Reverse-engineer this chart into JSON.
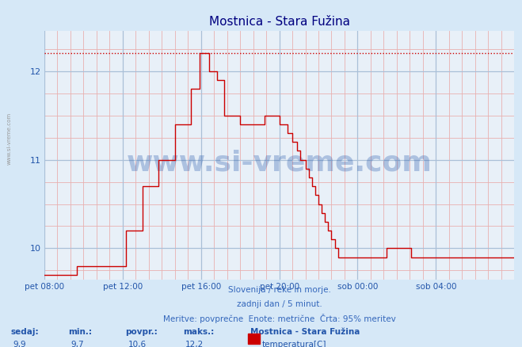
{
  "title": "Mostnica - Stara Fužina",
  "bg_color": "#d6e8f7",
  "plot_bg_color": "#e8f0f8",
  "line_color": "#cc0000",
  "grid_minor_color": "#e8b0b0",
  "grid_major_color": "#aac0d8",
  "ymin": 9.65,
  "ymax": 12.45,
  "ylabel_ticks": [
    10,
    11,
    12
  ],
  "max_line_y": 12.2,
  "subtitle1": "Slovenija / reke in morje.",
  "subtitle2": "zadnji dan / 5 minut.",
  "subtitle3": "Meritve: povprečne  Enote: metrične  Črta: 95% meritev",
  "footer_labels": [
    "sedaj:",
    "min.:",
    "povpr.:",
    "maks.:"
  ],
  "footer_values": [
    "9,9",
    "9,7",
    "10,6",
    "12,2"
  ],
  "legend_name": "Mostnica - Stara Fužina",
  "legend_item": "temperatura[C]",
  "watermark": "www.si-vreme.com",
  "side_label": "www.si-vreme.com",
  "x_tick_labels": [
    "pet 08:00",
    "pet 12:00",
    "pet 16:00",
    "pet 20:00",
    "sob 00:00",
    "sob 04:00"
  ],
  "x_tick_positions": [
    0,
    48,
    96,
    144,
    192,
    240
  ],
  "total_points": 289,
  "temperature_data": [
    9.7,
    9.7,
    9.7,
    9.7,
    9.7,
    9.7,
    9.7,
    9.7,
    9.7,
    9.7,
    9.7,
    9.7,
    9.7,
    9.7,
    9.7,
    9.7,
    9.7,
    9.7,
    9.7,
    9.7,
    9.8,
    9.8,
    9.8,
    9.8,
    9.8,
    9.8,
    9.8,
    9.8,
    9.8,
    9.8,
    9.8,
    9.8,
    9.8,
    9.8,
    9.8,
    9.8,
    9.8,
    9.8,
    9.8,
    9.8,
    9.8,
    9.8,
    9.8,
    9.8,
    9.8,
    9.8,
    9.8,
    9.8,
    9.8,
    9.8,
    10.2,
    10.2,
    10.2,
    10.2,
    10.2,
    10.2,
    10.2,
    10.2,
    10.2,
    10.2,
    10.7,
    10.7,
    10.7,
    10.7,
    10.7,
    10.7,
    10.7,
    10.7,
    10.7,
    10.7,
    11.0,
    11.0,
    11.0,
    11.0,
    11.0,
    11.0,
    11.0,
    11.0,
    11.0,
    11.0,
    11.4,
    11.4,
    11.4,
    11.4,
    11.4,
    11.4,
    11.4,
    11.4,
    11.4,
    11.4,
    11.8,
    11.8,
    11.8,
    11.8,
    11.8,
    12.2,
    12.2,
    12.2,
    12.2,
    12.2,
    12.2,
    12.0,
    12.0,
    12.0,
    12.0,
    12.0,
    11.9,
    11.9,
    11.9,
    11.9,
    11.5,
    11.5,
    11.5,
    11.5,
    11.5,
    11.5,
    11.5,
    11.5,
    11.5,
    11.5,
    11.4,
    11.4,
    11.4,
    11.4,
    11.4,
    11.4,
    11.4,
    11.4,
    11.4,
    11.4,
    11.4,
    11.4,
    11.4,
    11.4,
    11.4,
    11.5,
    11.5,
    11.5,
    11.5,
    11.5,
    11.5,
    11.5,
    11.5,
    11.5,
    11.4,
    11.4,
    11.4,
    11.4,
    11.4,
    11.3,
    11.3,
    11.3,
    11.2,
    11.2,
    11.2,
    11.1,
    11.1,
    11.0,
    11.0,
    11.0,
    10.9,
    10.9,
    10.8,
    10.8,
    10.7,
    10.7,
    10.6,
    10.6,
    10.5,
    10.5,
    10.4,
    10.4,
    10.3,
    10.3,
    10.2,
    10.2,
    10.1,
    10.1,
    10.0,
    10.0,
    9.9,
    9.9,
    9.9,
    9.9,
    9.9,
    9.9,
    9.9,
    9.9,
    9.9,
    9.9,
    9.9,
    9.9,
    9.9,
    9.9,
    9.9,
    9.9,
    9.9,
    9.9,
    9.9,
    9.9,
    9.9,
    9.9,
    9.9,
    9.9,
    9.9,
    9.9,
    9.9,
    9.9,
    9.9,
    9.9,
    10.0,
    10.0,
    10.0,
    10.0,
    10.0,
    10.0,
    10.0,
    10.0,
    10.0,
    10.0,
    10.0,
    10.0,
    10.0,
    10.0,
    10.0,
    9.9,
    9.9,
    9.9,
    9.9,
    9.9,
    9.9,
    9.9,
    9.9,
    9.9,
    9.9,
    9.9,
    9.9,
    9.9,
    9.9,
    9.9,
    9.9,
    9.9,
    9.9,
    9.9,
    9.9,
    9.9,
    9.9,
    9.9,
    9.9,
    9.9,
    9.9,
    9.9,
    9.9,
    9.9,
    9.9,
    9.9,
    9.9,
    9.9,
    9.9,
    9.9,
    9.9,
    9.9,
    9.9,
    9.9,
    9.9,
    9.9,
    9.9,
    9.9,
    9.9,
    9.9,
    9.9,
    9.9,
    9.9,
    9.9,
    9.9,
    9.9,
    9.9,
    9.9,
    9.9,
    9.9,
    9.9,
    9.9,
    9.9,
    9.9,
    9.9,
    9.9,
    9.9,
    9.9,
    9.9
  ]
}
